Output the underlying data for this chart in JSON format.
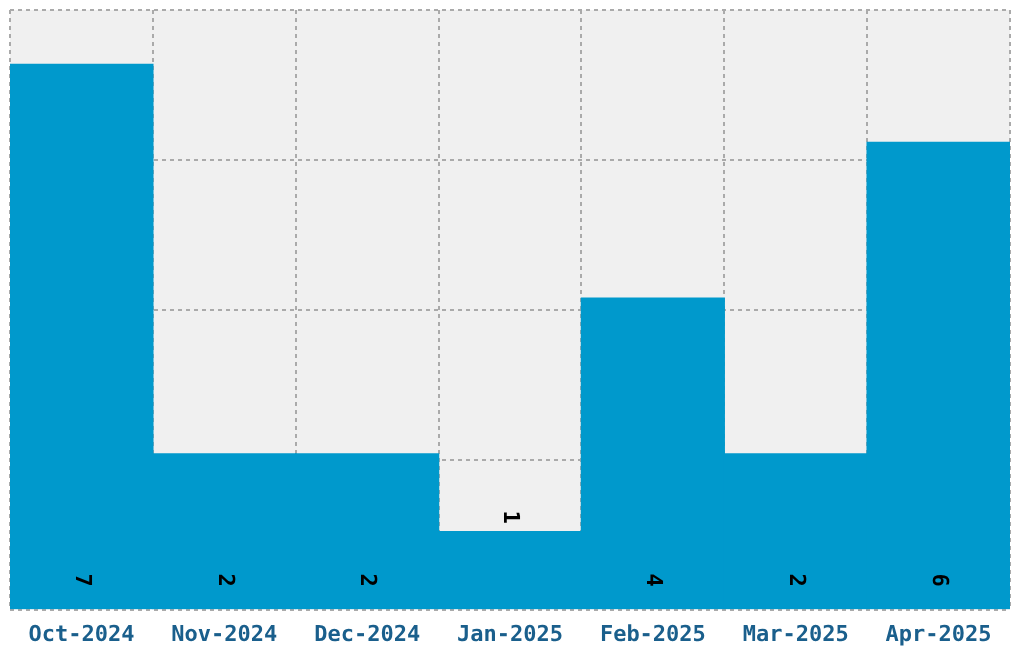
{
  "chart_data": {
    "type": "bar",
    "categories": [
      "Oct-2024",
      "Nov-2024",
      "Dec-2024",
      "Jan-2025",
      "Feb-2025",
      "Mar-2025",
      "Apr-2025"
    ],
    "values": [
      7,
      2,
      2,
      1,
      4,
      2,
      6
    ],
    "color": "#0099cc",
    "ylim": [
      0,
      7.7
    ],
    "yticks": [
      {
        "value": 0,
        "label": null
      },
      {
        "value": 1.925,
        "label": null
      },
      {
        "value": 3.85,
        "label": null
      },
      {
        "value": 5.775,
        "label": null
      },
      {
        "value": 7.7,
        "label": null
      }
    ],
    "tick_labels": "x",
    "grid": true,
    "data_labels": true,
    "legend": false
  }
}
